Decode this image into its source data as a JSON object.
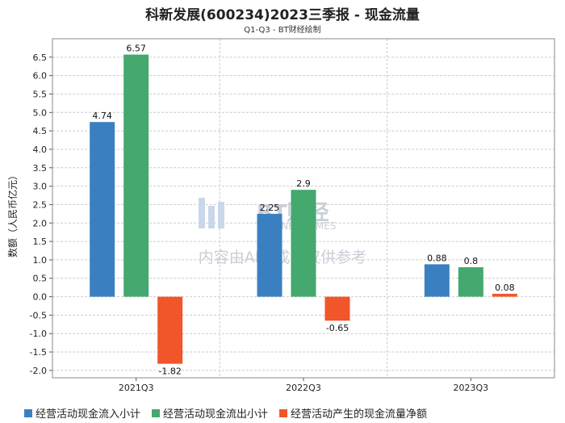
{
  "title": "科新发展(600234)2023三季报 - 现金流量",
  "subtitle": "Q1-Q3 - BT财经绘制",
  "watermark": {
    "brand": "BT财经",
    "brand_en": "BUSINESSTIMES",
    "notice": "内容由AI生成，仅供参考"
  },
  "colors": {
    "series": [
      "#3a80c1",
      "#44a86f",
      "#f0562a"
    ],
    "grid": "#cccccc",
    "plot_bg": "#ffffff"
  },
  "chart_data": {
    "type": "bar",
    "title": "科新发展(600234)2023三季报 - 现金流量",
    "subtitle": "Q1-Q3 - BT财经绘制",
    "xlabel": "",
    "ylabel": "数额（人民币亿元）",
    "ylim": [
      -2.2,
      7.0
    ],
    "yticks": [
      -2.0,
      -1.5,
      -1.0,
      -0.5,
      0.0,
      0.5,
      1.0,
      1.5,
      2.0,
      2.5,
      3.0,
      3.5,
      4.0,
      4.5,
      5.0,
      5.5,
      6.0,
      6.5
    ],
    "ytick_labels": [
      "-2.0",
      "-1.5",
      "-1.0",
      "-0.5",
      "0.0",
      "0.5",
      "1.0",
      "1.5",
      "2.0",
      "2.5",
      "3.0",
      "3.5",
      "4.0",
      "4.5",
      "5.0",
      "5.5",
      "6.0",
      "6.5"
    ],
    "grid": true,
    "legend_position": "bottom",
    "categories": [
      "2021Q3",
      "2022Q3",
      "2023Q3"
    ],
    "series": [
      {
        "name": "经营活动现金流入小计",
        "values": [
          4.74,
          2.25,
          0.88
        ],
        "labels": [
          "4.74",
          "2.25",
          "0.88"
        ]
      },
      {
        "name": "经营活动现金流出小计",
        "values": [
          6.57,
          2.9,
          0.8
        ],
        "labels": [
          "6.57",
          "2.9",
          "0.8"
        ]
      },
      {
        "name": "经营活动产生的现金流量净额",
        "values": [
          -1.82,
          -0.65,
          0.08
        ],
        "labels": [
          "-1.82",
          "-0.65",
          "0.08"
        ]
      }
    ]
  }
}
